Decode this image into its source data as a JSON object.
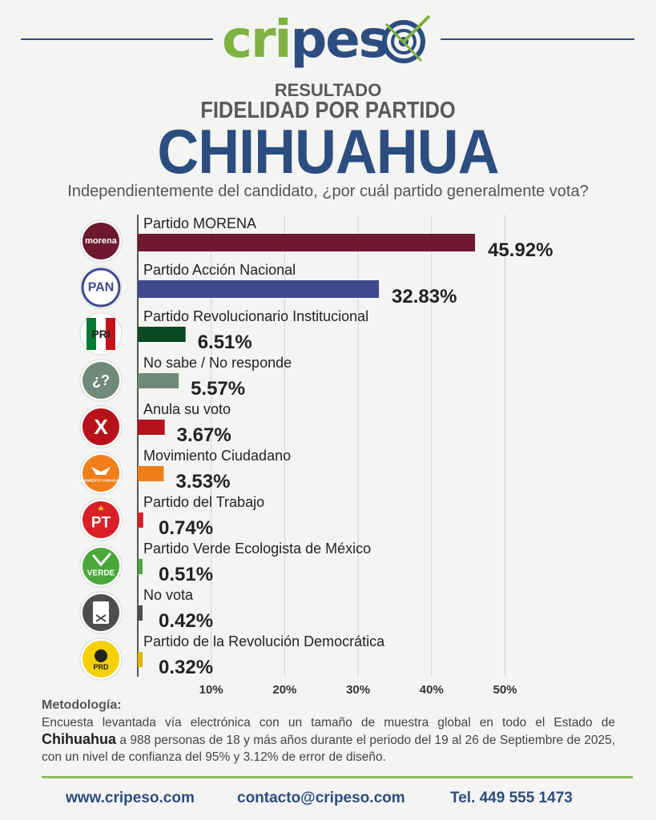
{
  "brand": {
    "logo_green": "cri",
    "logo_blue": "pes",
    "logo_last": "o"
  },
  "header": {
    "kicker": "RESULTADO",
    "subtitle": "FIDELIDAD POR PARTIDO",
    "title": "CHIHUAHUA",
    "question": "Independientemente del candidato, ¿por cuál partido generalmente vota?"
  },
  "chart_data": {
    "type": "bar",
    "orientation": "horizontal",
    "categories": [
      "Partido MORENA",
      "Partido Acción Nacional",
      "Partido Revolucionario Institucional",
      "No sabe / No responde",
      "Anula su voto",
      "Movimiento Ciudadano",
      "Partido del Trabajo",
      "Partido Verde Ecologista de México",
      "No vota",
      "Partido de la Revolución Democrática"
    ],
    "values": [
      45.92,
      32.83,
      6.51,
      5.57,
      3.67,
      3.53,
      0.74,
      0.51,
      0.42,
      0.32
    ],
    "value_labels": [
      "45.92%",
      "32.83%",
      "6.51%",
      "5.57%",
      "3.67%",
      "3.53%",
      "0.74%",
      "0.51%",
      "0.42%",
      "0.32%"
    ],
    "colors": [
      "#6e1832",
      "#3f4a8e",
      "#0b4a22",
      "#6f8a78",
      "#b5121b",
      "#f07f1a",
      "#d92027",
      "#4aa83a",
      "#4d4d4d",
      "#e0b400"
    ],
    "icons": [
      "morena-icon",
      "pan-icon",
      "pri-icon",
      "question-icon",
      "x-icon",
      "mc-icon",
      "pt-icon",
      "verde-icon",
      "ballot-icon",
      "prd-icon"
    ],
    "icon_texts": [
      "morena",
      "PAN",
      "PRI",
      "¿?",
      "X",
      "MOVIMIENTO CIUDADANO",
      "PT",
      "VERDE",
      "",
      "PRD"
    ],
    "xlim": [
      0,
      55
    ],
    "xticks": [
      10,
      20,
      30,
      40,
      50
    ],
    "xtick_labels": [
      "10%",
      "20%",
      "30%",
      "40%",
      "50%"
    ],
    "grid": true
  },
  "methodology": {
    "title": "Metodología:",
    "line_start": "Encuesta levantada vía electrónica con un tamaño de muestra global en todo el Estado de",
    "highlight": "Chihuahua",
    "line_rest": " a 988 personas de 18 y más años durante el periodo del 19 al 26 de Septiembre de 2025, con un nivel de confianza del 95% y 3.12% de error de diseño."
  },
  "footer": {
    "website": "www.cripeso.com",
    "email": "contacto@cripeso.com",
    "phone": "Tel. 449 555 1473"
  }
}
